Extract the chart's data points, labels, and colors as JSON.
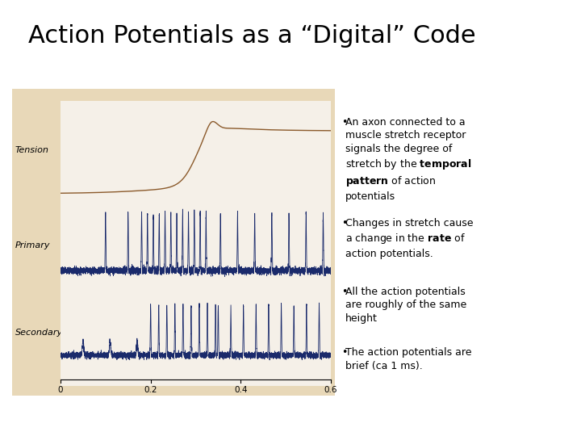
{
  "title": "Action Potentials as a “Digital” Code",
  "title_fontsize": 22,
  "background_color": "#ffffff",
  "graph_bg": "#e8d8b8",
  "inner_bg": "#f5f0e8",
  "tension_label": "Tension",
  "primary_label": "Primary",
  "secondary_label": "Secondary",
  "xtick_labels": [
    "0",
    "0.2",
    "0.4",
    "0.6"
  ],
  "xtick_vals": [
    0.0,
    0.2,
    0.4,
    0.6
  ],
  "tension_color": "#8B5A2B",
  "spike_color": "#1a2a6b",
  "bullet_fontsize": 9,
  "bullet1_plain1": "An axon connected to a\nmuscle stretch receptor\nsignals the degree of\nstretch by the ",
  "bullet1_italic": "temporal\npattern",
  "bullet1_plain2": " of action\npotentials",
  "bullet2_plain1": "Changes in stretch cause\na change in the ",
  "bullet2_italic": "rate",
  "bullet2_plain2": " of\naction potentials.",
  "bullet3": "All the action potentials\nare roughly of the same\nheight",
  "bullet4": "The action potentials are\nbrief (ca 1 ms)."
}
